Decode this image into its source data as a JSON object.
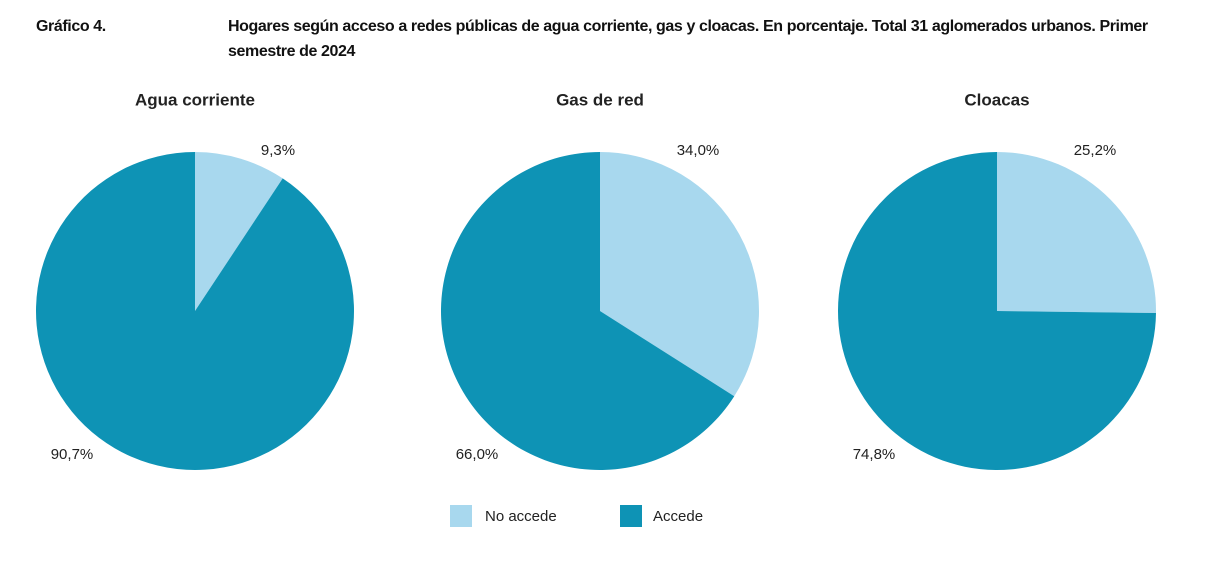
{
  "header": {
    "label": "Gráfico 4.",
    "title": "Hogares según acceso a redes públicas de agua corriente, gas y cloacas. En porcentaje. Total 31 aglomerados urbanos. Primer semestre de 2024"
  },
  "chart_data": [
    {
      "type": "pie",
      "title": "Agua corriente",
      "categories": [
        "No accede",
        "Accede"
      ],
      "values": [
        9.3,
        90.7
      ],
      "value_labels": [
        "9,3%",
        "90,7%"
      ],
      "colors": [
        "#a8d8ee",
        "#0e93b5"
      ]
    },
    {
      "type": "pie",
      "title": "Gas de red",
      "categories": [
        "No accede",
        "Accede"
      ],
      "values": [
        34.0,
        66.0
      ],
      "value_labels": [
        "34,0%",
        "66,0%"
      ],
      "colors": [
        "#a8d8ee",
        "#0e93b5"
      ]
    },
    {
      "type": "pie",
      "title": "Cloacas",
      "categories": [
        "No accede",
        "Accede"
      ],
      "values": [
        25.2,
        74.8
      ],
      "value_labels": [
        "25,2%",
        "74,8%"
      ],
      "colors": [
        "#a8d8ee",
        "#0e93b5"
      ]
    }
  ]
}
